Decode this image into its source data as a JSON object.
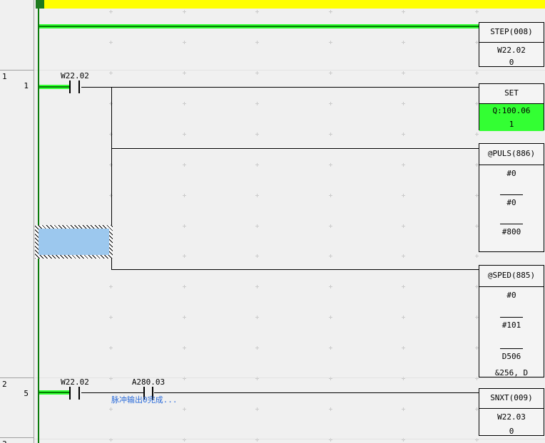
{
  "margin": {
    "rungs": [
      {
        "number": "1",
        "step": "1"
      },
      {
        "number": "2",
        "step": "5"
      },
      {
        "number": "3",
        "step": ""
      }
    ]
  },
  "contacts": {
    "rung1_contact": "W22.02",
    "rung2_contact1": "W22.02",
    "rung2_contact2": "A280.03"
  },
  "comment": {
    "text": "脉冲输出0完成..."
  },
  "blocks": {
    "step": {
      "title": "STEP(008)",
      "operand": "W22.02",
      "value": "0"
    },
    "set": {
      "title": "SET",
      "operand": "Q:100.06",
      "value": "1"
    },
    "puls": {
      "title": "@PULS(886)",
      "ops": [
        "#0",
        "#0",
        "#800"
      ]
    },
    "sped": {
      "title": "@SPED(885)",
      "ops": [
        "#0",
        "#101",
        "D506"
      ],
      "monitor_value": "&256, D"
    },
    "snxt": {
      "title": "SNXT(009)",
      "operand": "W22.03",
      "value": "0"
    }
  },
  "colors": {
    "power_flow_green": "#33FF33",
    "rail_green": "#0B7B0B",
    "active_bit_green": "#33FF33",
    "selection_fill_blue": "#9CC8EE",
    "section_bar_yellow": "#FFFF00",
    "section_marker_green": "#1E7A1E",
    "comment_blue": "#2B6BD9"
  }
}
